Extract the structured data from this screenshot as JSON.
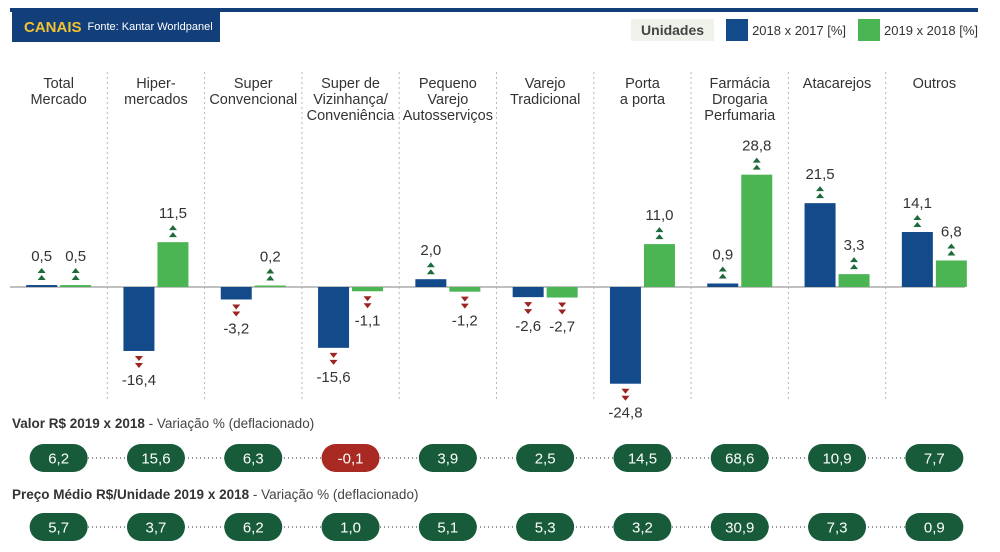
{
  "header": {
    "title": "CANAIS",
    "source": "Fonte: Kantar Worldpanel"
  },
  "legend": {
    "units_label": "Unidades",
    "items": [
      {
        "label": "2018 x 2017 [%]",
        "color": "#124a8a"
      },
      {
        "label": "2019 x 2018 [%]",
        "color": "#4bb553"
      }
    ]
  },
  "colors": {
    "series_2018": "#124a8a",
    "series_2019": "#4bb553",
    "up_arrow": "#1d6b3a",
    "down_arrow": "#9b2320",
    "pill_default": "#175b3a",
    "pill_negative": "#a92a22"
  },
  "chart_data": {
    "type": "bar",
    "categories": [
      "Total\nMercado",
      "Hiper-\nmercados",
      "Super\nConvencional",
      "Super de\nVizinhança/\nConveniência",
      "Pequeno\nVarejo\nAutosserviços",
      "Varejo\nTradicional",
      "Porta\na porta",
      "Farmácia\nDrogaria\nPerfumaria",
      "Atacarejos",
      "Outros"
    ],
    "series": [
      {
        "name": "2018 x 2017 [%]",
        "values": [
          0.5,
          -16.4,
          -3.2,
          -15.6,
          2.0,
          -2.6,
          -24.8,
          0.9,
          21.5,
          14.1
        ],
        "labels": [
          "0,5",
          "-16,4",
          "-3,2",
          "-15,6",
          "2,0",
          "-2,6",
          "-24,8",
          "0,9",
          "21,5",
          "14,1"
        ]
      },
      {
        "name": "2019 x 2018 [%]",
        "values": [
          0.5,
          11.5,
          0.2,
          -1.1,
          -1.2,
          -2.7,
          11.0,
          28.8,
          3.3,
          6.8
        ],
        "labels": [
          "0,5",
          "11,5",
          "0,2",
          "-1,1",
          "-1,2",
          "-2,7",
          "11,0",
          "28,8",
          "3,3",
          "6,8"
        ]
      }
    ],
    "valor": {
      "label_bold": "Valor R$ 2019 x 2018",
      "label_rest": " - Variação % (deflacionado)",
      "values": [
        6.2,
        15.6,
        6.3,
        -0.1,
        3.9,
        2.5,
        14.5,
        68.6,
        10.9,
        7.7
      ],
      "labels": [
        "6,2",
        "15,6",
        "6,3",
        "-0,1",
        "3,9",
        "2,5",
        "14,5",
        "68,6",
        "10,9",
        "7,7"
      ]
    },
    "preco_medio": {
      "label_bold": "Preço Médio R$/Unidade 2019 x 2018",
      "label_rest": " - Variação % (deflacionado)",
      "values": [
        5.7,
        3.7,
        6.2,
        1.0,
        5.1,
        5.3,
        3.2,
        30.9,
        7.3,
        0.9
      ],
      "labels": [
        "5,7",
        "3,7",
        "6,2",
        "1,0",
        "5,1",
        "5,3",
        "3,2",
        "30,9",
        "7,3",
        "0,9"
      ]
    }
  }
}
